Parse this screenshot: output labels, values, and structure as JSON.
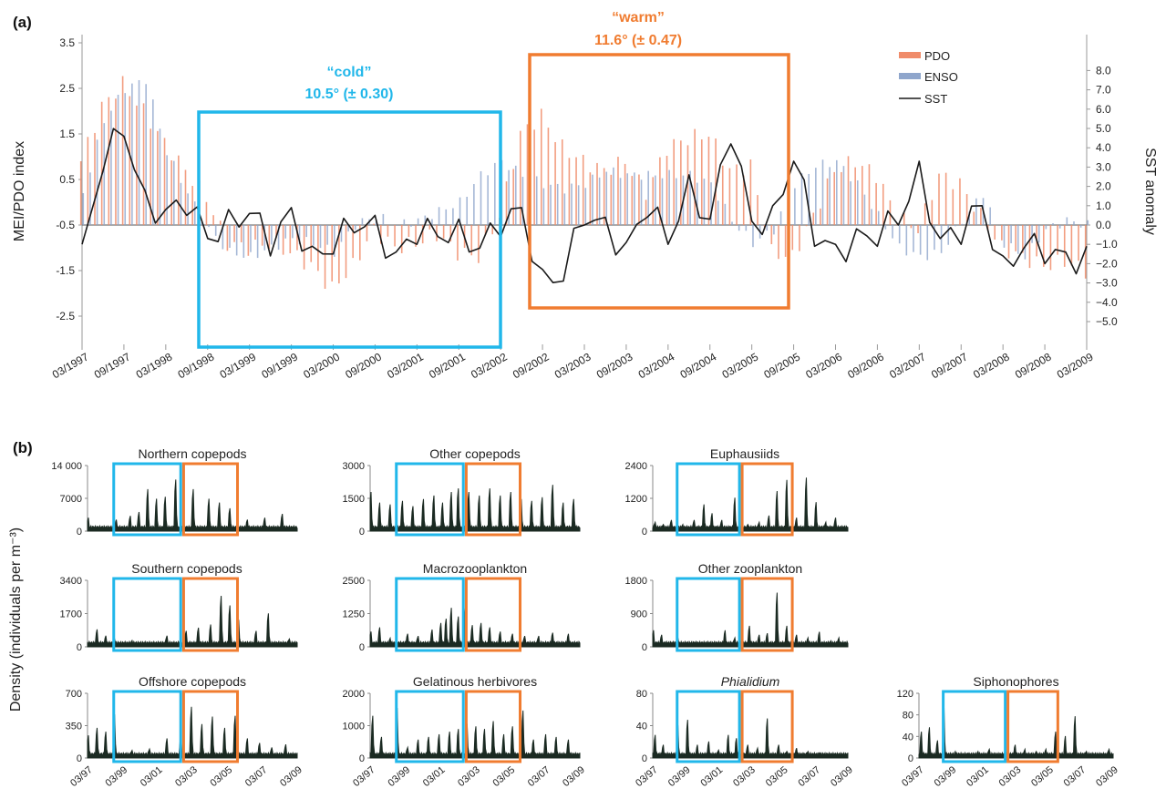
{
  "colors": {
    "pdo": "#f08c6a",
    "enso": "#8fa6cc",
    "sst": "#1a1a1a",
    "cold": "#21b7ea",
    "warm": "#f07c30",
    "density": "#1b2a22"
  },
  "panel_a": {
    "letter": "(a)",
    "ylabel_left": "MEI/PDO index",
    "ylabel_right": "SST anomaly",
    "cold_label": "“cold”",
    "cold_value": "10.5° (± 0.30)",
    "warm_label": "“warm”",
    "warm_value": "11.6° (± 0.47)",
    "legend": [
      "PDO",
      "ENSO",
      "SST"
    ],
    "left_ticks": [
      "3.5",
      "2.5",
      "1.5",
      "0.5",
      "-0.5",
      "-1.5",
      "-2.5"
    ],
    "right_ticks": [
      "8.0",
      "7.0",
      "6.0",
      "5.0",
      "4.0",
      "3.0",
      "2.0",
      "1.0",
      "0.0",
      "−1.0",
      "−2.0",
      "−3.0",
      "−4.0",
      "−5.0"
    ],
    "x_ticks": [
      "03/1997",
      "09/1997",
      "03/1998",
      "09/1998",
      "03/1999",
      "09/1999",
      "03/2000",
      "09/2000",
      "03/2001",
      "09/2001",
      "03/2002",
      "09/2002",
      "03/2003",
      "09/2003",
      "03/2004",
      "09/2004",
      "03/2005",
      "09/2005",
      "03/2006",
      "09/2006",
      "03/2007",
      "09/2007",
      "03/2008",
      "09/2008",
      "03/2009"
    ]
  },
  "panel_b": {
    "letter": "(b)",
    "ylabel": "Density (individuals per m⁻³)",
    "x_ticks": [
      "03/97",
      "03/99",
      "03/01",
      "03/03",
      "03/05",
      "03/07",
      "03/09"
    ]
  },
  "chart_data": [
    {
      "type": "bar",
      "title": "",
      "xlabel": "",
      "ylabel": "MEI/PDO index",
      "ylabel_right": "SST anomaly",
      "ylim": [
        -2.5,
        3.5
      ],
      "ylim_right": [
        -5.0,
        8.0
      ],
      "x_range": [
        "1997-03",
        "2009-03"
      ],
      "x_step": "quarter",
      "legend_position": "top-right",
      "periods": [
        {
          "name": "cold",
          "label": "10.5° (± 0.30)",
          "start": "1998-09",
          "end": "2002-07"
        },
        {
          "name": "warm",
          "label": "11.6° (± 0.47)",
          "start": "2002-09",
          "end": "2005-10"
        }
      ],
      "series": [
        {
          "name": "PDO",
          "kind": "bar",
          "values": [
            0.9,
            2.1,
            2.6,
            2.0,
            1.3,
            0.7,
            0.1,
            -0.9,
            -1.0,
            -0.9,
            -1.1,
            -1.4,
            -1.9,
            -1.4,
            -0.6,
            -1.0,
            -0.9,
            -0.7,
            -1.1,
            -1.2,
            -0.3,
            1.5,
            1.9,
            1.2,
            0.9,
            0.7,
            0.9,
            0.2,
            1.2,
            1.4,
            1.5,
            0.7,
            0.8,
            -1.1,
            -1.2,
            -0.3,
            0.7,
            0.9,
            0.6,
            -0.3,
            -0.6,
            0.6,
            0.4,
            -0.3,
            -1.0,
            -1.2,
            -1.4,
            -1.3,
            -1.5
          ]
        },
        {
          "name": "ENSO",
          "kind": "bar",
          "values": [
            0.2,
            1.8,
            2.5,
            2.7,
            1.1,
            0.2,
            -0.6,
            -1.1,
            -1.2,
            -1.0,
            -0.8,
            -0.9,
            -1.1,
            -0.5,
            -0.3,
            -0.5,
            -0.4,
            -0.2,
            0.0,
            0.6,
            0.9,
            0.6,
            0.4,
            0.3,
            0.4,
            0.7,
            0.6,
            0.6,
            0.6,
            0.6,
            0.4,
            -0.4,
            -0.9,
            -0.6,
            0.4,
            0.8,
            0.9,
            0.4,
            -0.3,
            -1.0,
            -1.2,
            -1.1,
            -0.4,
            0.2,
            -0.9,
            -1.2,
            -0.6,
            -0.4,
            -0.5
          ]
        },
        {
          "name": "SST",
          "kind": "line",
          "axis": "right",
          "values": [
            -1.0,
            2.8,
            4.6,
            1.8,
            0.8,
            0.5,
            -0.7,
            0.8,
            0.6,
            -1.6,
            0.9,
            -1.1,
            -1.5,
            -0.4,
            0.5,
            -1.4,
            -1.0,
            -0.6,
            0.3,
            -1.2,
            -0.6,
            0.9,
            -2.3,
            -2.9,
            0.0,
            0.4,
            -0.9,
            0.4,
            -1.0,
            2.6,
            0.3,
            4.2,
            0.2,
            1.0,
            3.3,
            -1.1,
            -1.0,
            -0.2,
            -1.1,
            0.0,
            3.3,
            -0.7,
            -1.0,
            1.0,
            -1.6,
            -1.2,
            -2.0,
            -1.4,
            -1.1
          ]
        }
      ]
    },
    {
      "type": "area",
      "title": "Northern copepods",
      "x_range": [
        "1997-03",
        "2009-03"
      ],
      "ylim": [
        0,
        14000
      ],
      "yticks": [
        0,
        7000,
        14000
      ],
      "tick_labels": [
        "0",
        "7000",
        "14 000"
      ],
      "periods": [
        [
          "1998-09",
          "2002-07"
        ],
        [
          "2002-09",
          "2005-10"
        ]
      ],
      "peaks": [
        [
          1997.2,
          3500
        ],
        [
          1998.8,
          3000
        ],
        [
          1999.6,
          4000
        ],
        [
          2000.1,
          5000
        ],
        [
          2000.6,
          11000
        ],
        [
          2001.1,
          8500
        ],
        [
          2001.6,
          9000
        ],
        [
          2002.2,
          13500
        ],
        [
          2003.2,
          11000
        ],
        [
          2004.1,
          8500
        ],
        [
          2004.7,
          7500
        ],
        [
          2005.3,
          6000
        ],
        [
          2006.3,
          3000
        ],
        [
          2007.3,
          3500
        ],
        [
          2008.3,
          4500
        ]
      ]
    },
    {
      "type": "area",
      "title": "Southern copepods",
      "x_range": [
        "1997-03",
        "2009-03"
      ],
      "ylim": [
        0,
        3400
      ],
      "yticks": [
        0,
        1700,
        3400
      ],
      "tick_labels": [
        "0",
        "1700",
        "3400"
      ],
      "periods": [
        [
          "1998-09",
          "2002-07"
        ],
        [
          "2002-09",
          "2005-10"
        ]
      ],
      "peaks": [
        [
          1997.7,
          1100
        ],
        [
          1998.2,
          700
        ],
        [
          1998.7,
          500
        ],
        [
          1999.7,
          400
        ],
        [
          2001.7,
          700
        ],
        [
          2002.8,
          1000
        ],
        [
          2003.5,
          1200
        ],
        [
          2004.2,
          1400
        ],
        [
          2004.8,
          3200
        ],
        [
          2005.3,
          2600
        ],
        [
          2005.8,
          1700
        ],
        [
          2006.8,
          1000
        ],
        [
          2007.5,
          2100
        ],
        [
          2008.7,
          500
        ]
      ]
    },
    {
      "type": "area",
      "title": "Offshore copepods",
      "x_range": [
        "1997-03",
        "2009-03"
      ],
      "ylim": [
        0,
        700
      ],
      "yticks": [
        0,
        350,
        700
      ],
      "tick_labels": [
        "0",
        "350",
        "700"
      ],
      "periods": [
        [
          "1998-09",
          "2002-07"
        ],
        [
          "2002-09",
          "2005-10"
        ]
      ],
      "peaks": [
        [
          1997.2,
          300
        ],
        [
          1997.7,
          400
        ],
        [
          1998.2,
          350
        ],
        [
          1998.7,
          580
        ],
        [
          1999.7,
          100
        ],
        [
          2000.7,
          120
        ],
        [
          2001.7,
          260
        ],
        [
          2002.5,
          300
        ],
        [
          2003.1,
          680
        ],
        [
          2003.7,
          450
        ],
        [
          2004.3,
          550
        ],
        [
          2005.0,
          400
        ],
        [
          2005.6,
          560
        ],
        [
          2006.3,
          260
        ],
        [
          2007.0,
          200
        ],
        [
          2007.7,
          140
        ],
        [
          2008.5,
          180
        ]
      ]
    },
    {
      "type": "area",
      "title": "Other copepods",
      "x_range": [
        "1997-03",
        "2009-03"
      ],
      "ylim": [
        0,
        3000
      ],
      "yticks": [
        0,
        1500,
        3000
      ],
      "tick_labels": [
        "0",
        "1500",
        "3000"
      ],
      "periods": [
        [
          "1998-09",
          "2002-07"
        ],
        [
          "2002-09",
          "2005-10"
        ]
      ],
      "peaks": [
        [
          1997.2,
          2200
        ],
        [
          1997.7,
          1600
        ],
        [
          1998.3,
          1500
        ],
        [
          1999.0,
          1700
        ],
        [
          1999.6,
          1400
        ],
        [
          2000.2,
          1800
        ],
        [
          2000.8,
          2000
        ],
        [
          2001.3,
          1600
        ],
        [
          2001.8,
          2200
        ],
        [
          2002.2,
          2400
        ],
        [
          2002.8,
          2200
        ],
        [
          2003.4,
          2000
        ],
        [
          2004.0,
          2400
        ],
        [
          2004.6,
          2000
        ],
        [
          2005.2,
          2200
        ],
        [
          2005.8,
          1800
        ],
        [
          2006.4,
          1700
        ],
        [
          2007.0,
          1900
        ],
        [
          2007.6,
          2600
        ],
        [
          2008.2,
          1600
        ],
        [
          2008.8,
          1800
        ]
      ]
    },
    {
      "type": "area",
      "title": "Macrozooplankton",
      "x_range": [
        "1997-03",
        "2009-03"
      ],
      "ylim": [
        0,
        2500
      ],
      "yticks": [
        0,
        1250,
        2500
      ],
      "tick_labels": [
        "0",
        "1250",
        "2500"
      ],
      "periods": [
        [
          "1998-09",
          "2002-07"
        ],
        [
          "2002-09",
          "2005-10"
        ]
      ],
      "peaks": [
        [
          1997.2,
          700
        ],
        [
          1997.7,
          900
        ],
        [
          1998.3,
          400
        ],
        [
          1999.3,
          600
        ],
        [
          1999.9,
          500
        ],
        [
          2000.7,
          800
        ],
        [
          2001.2,
          1100
        ],
        [
          2001.5,
          1300
        ],
        [
          2001.8,
          1800
        ],
        [
          2002.2,
          1400
        ],
        [
          2002.6,
          1800
        ],
        [
          2003.0,
          1000
        ],
        [
          2003.5,
          1100
        ],
        [
          2004.0,
          900
        ],
        [
          2004.6,
          700
        ],
        [
          2005.3,
          600
        ],
        [
          2006.0,
          500
        ],
        [
          2006.8,
          500
        ],
        [
          2007.6,
          650
        ],
        [
          2008.5,
          600
        ]
      ]
    },
    {
      "type": "area",
      "title": "Gelatinous herbivores",
      "x_range": [
        "1997-03",
        "2009-03"
      ],
      "ylim": [
        0,
        2000
      ],
      "yticks": [
        0,
        1000,
        2000
      ],
      "tick_labels": [
        "0",
        "1000",
        "2000"
      ],
      "periods": [
        [
          "1998-09",
          "2002-07"
        ],
        [
          "2002-09",
          "2005-10"
        ]
      ],
      "peaks": [
        [
          1997.3,
          1600
        ],
        [
          1997.8,
          800
        ],
        [
          1998.7,
          1900
        ],
        [
          1999.3,
          400
        ],
        [
          1999.9,
          700
        ],
        [
          2000.5,
          800
        ],
        [
          2001.1,
          900
        ],
        [
          2001.7,
          1000
        ],
        [
          2002.2,
          1100
        ],
        [
          2002.7,
          1300
        ],
        [
          2003.2,
          1200
        ],
        [
          2003.7,
          1100
        ],
        [
          2004.2,
          1400
        ],
        [
          2004.8,
          900
        ],
        [
          2005.3,
          1200
        ],
        [
          2005.9,
          1800
        ],
        [
          2006.5,
          700
        ],
        [
          2007.2,
          900
        ],
        [
          2007.8,
          800
        ],
        [
          2008.5,
          700
        ]
      ]
    },
    {
      "type": "area",
      "title": "Euphausiids",
      "x_range": [
        "1997-03",
        "2009-03"
      ],
      "ylim": [
        0,
        2400
      ],
      "yticks": [
        0,
        1200,
        2400
      ],
      "tick_labels": [
        "0",
        "1200",
        "2400"
      ],
      "periods": [
        [
          "1998-09",
          "2002-07"
        ],
        [
          "2002-09",
          "2005-10"
        ]
      ],
      "peaks": [
        [
          1997.3,
          400
        ],
        [
          1997.8,
          300
        ],
        [
          1998.3,
          500
        ],
        [
          1999.0,
          300
        ],
        [
          1999.7,
          500
        ],
        [
          2000.3,
          1200
        ],
        [
          2000.8,
          800
        ],
        [
          2001.4,
          500
        ],
        [
          2002.2,
          1500
        ],
        [
          2003.0,
          300
        ],
        [
          2003.7,
          400
        ],
        [
          2004.3,
          700
        ],
        [
          2004.8,
          1800
        ],
        [
          2005.4,
          2300
        ],
        [
          2006.0,
          600
        ],
        [
          2006.6,
          2400
        ],
        [
          2007.2,
          1300
        ],
        [
          2007.8,
          400
        ],
        [
          2008.4,
          600
        ]
      ]
    },
    {
      "type": "area",
      "title": "Other zooplankton",
      "x_range": [
        "1997-03",
        "2009-03"
      ],
      "ylim": [
        0,
        1800
      ],
      "yticks": [
        0,
        900,
        1800
      ],
      "tick_labels": [
        "0",
        "900",
        "1800"
      ],
      "periods": [
        [
          "1998-09",
          "2002-07"
        ],
        [
          "2002-09",
          "2005-10"
        ]
      ],
      "peaks": [
        [
          1997.2,
          550
        ],
        [
          1997.7,
          400
        ],
        [
          1998.7,
          300
        ],
        [
          1999.7,
          150
        ],
        [
          2000.7,
          100
        ],
        [
          2001.6,
          550
        ],
        [
          2002.2,
          300
        ],
        [
          2002.6,
          200
        ],
        [
          2003.1,
          700
        ],
        [
          2003.7,
          400
        ],
        [
          2004.2,
          450
        ],
        [
          2004.8,
          1800
        ],
        [
          2005.4,
          700
        ],
        [
          2006.0,
          400
        ],
        [
          2006.7,
          300
        ],
        [
          2007.4,
          500
        ],
        [
          2008.1,
          200
        ],
        [
          2008.6,
          300
        ]
      ]
    },
    {
      "type": "area",
      "title": "Phialidium",
      "title_italic": true,
      "x_range": [
        "1997-03",
        "2009-03"
      ],
      "ylim": [
        0,
        80
      ],
      "yticks": [
        0,
        40,
        80
      ],
      "tick_labels": [
        "0",
        "40",
        "80"
      ],
      "periods": [
        [
          "1998-09",
          "2002-07"
        ],
        [
          "2002-09",
          "2005-10"
        ]
      ],
      "peaks": [
        [
          1997.3,
          35
        ],
        [
          1997.8,
          20
        ],
        [
          1998.7,
          50
        ],
        [
          1999.3,
          58
        ],
        [
          1999.9,
          20
        ],
        [
          2000.6,
          25
        ],
        [
          2001.2,
          12
        ],
        [
          2001.8,
          35
        ],
        [
          2002.3,
          30
        ],
        [
          2003.0,
          20
        ],
        [
          2003.6,
          15
        ],
        [
          2004.2,
          60
        ],
        [
          2004.9,
          20
        ],
        [
          2005.4,
          10
        ],
        [
          2006.0,
          15
        ],
        [
          2006.7,
          10
        ],
        [
          2007.4,
          8
        ],
        [
          2008.3,
          5
        ]
      ]
    },
    {
      "type": "area",
      "title": "Siphonophores",
      "x_range": [
        "1997-03",
        "2009-03"
      ],
      "ylim": [
        0,
        120
      ],
      "yticks": [
        0,
        40,
        80,
        120
      ],
      "tick_labels": [
        "0",
        "40",
        "80",
        "120"
      ],
      "periods": [
        [
          "1998-09",
          "2002-07"
        ],
        [
          "2002-09",
          "2005-10"
        ]
      ],
      "peaks": [
        [
          1997.3,
          60
        ],
        [
          1997.8,
          70
        ],
        [
          1998.3,
          40
        ],
        [
          1998.7,
          115
        ],
        [
          1999.4,
          15
        ],
        [
          2000.2,
          8
        ],
        [
          2000.8,
          15
        ],
        [
          2001.5,
          20
        ],
        [
          2002.2,
          10
        ],
        [
          2003.1,
          30
        ],
        [
          2003.7,
          20
        ],
        [
          2004.4,
          15
        ],
        [
          2005.0,
          20
        ],
        [
          2005.6,
          60
        ],
        [
          2006.2,
          50
        ],
        [
          2006.8,
          95
        ],
        [
          2007.5,
          15
        ],
        [
          2008.3,
          10
        ],
        [
          2008.9,
          20
        ]
      ]
    }
  ]
}
